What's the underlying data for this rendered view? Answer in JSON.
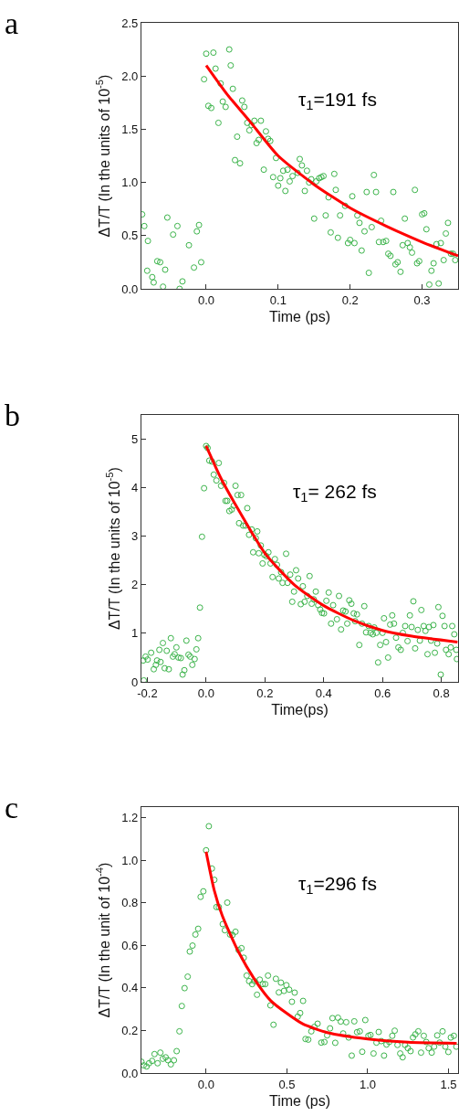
{
  "chart_data": [
    {
      "type": "scatter",
      "title": "a",
      "xlabel": "Time (ps)",
      "ylabel": "ΔT/T (In the units of 10$^{-5}$)",
      "annotations": [
        "τ$_{1}$=191 fs"
      ],
      "xlim": [
        -0.09,
        0.35
      ],
      "ylim": [
        0,
        2.5
      ],
      "xticks": [
        {
          "value": 0,
          "label": "0.0"
        },
        {
          "value": 0.1,
          "label": "0.1"
        },
        {
          "value": 0.2,
          "label": "0.2"
        },
        {
          "value": 0.3,
          "label": "0.3"
        }
      ],
      "yticks": [
        {
          "value": 0,
          "label": "0.0"
        },
        {
          "value": 0.5,
          "label": "0.5"
        },
        {
          "value": 1,
          "label": "1.0"
        },
        {
          "value": 1.5,
          "label": "1.5"
        },
        {
          "value": 2,
          "label": "2.0"
        },
        {
          "value": 2.5,
          "label": "2.5"
        }
      ],
      "series": [
        {
          "marker": "circle",
          "color": "#3cb44b",
          "x": [
            -0.089,
            -0.086,
            -0.081,
            -0.082,
            -0.075,
            -0.073,
            -0.068,
            -0.064,
            -0.06,
            -0.057,
            -0.054,
            -0.046,
            -0.04,
            -0.037,
            -0.033,
            -0.024,
            -0.017,
            -0.013,
            -0.01,
            -0.007,
            -0.003,
            0.0,
            0.003,
            0.007,
            0.01,
            0.013,
            0.017,
            0.02,
            0.023,
            0.027,
            0.032,
            0.034,
            0.037,
            0.04,
            0.043,
            0.047,
            0.05,
            0.053,
            0.057,
            0.06,
            0.063,
            0.067,
            0.07,
            0.073,
            0.076,
            0.08,
            0.083,
            0.086,
            0.089,
            0.093,
            0.097,
            0.1,
            0.103,
            0.107,
            0.11,
            0.113,
            0.116,
            0.12,
            0.127,
            0.13,
            0.133,
            0.137,
            0.14,
            0.143,
            0.146,
            0.15,
            0.153,
            0.157,
            0.16,
            0.163,
            0.166,
            0.17,
            0.173,
            0.178,
            0.18,
            0.183,
            0.186,
            0.193,
            0.197,
            0.2,
            0.203,
            0.206,
            0.21,
            0.213,
            0.216,
            0.22,
            0.223,
            0.226,
            0.23,
            0.233,
            0.236,
            0.24,
            0.243,
            0.246,
            0.25,
            0.253,
            0.256,
            0.26,
            0.263,
            0.266,
            0.27,
            0.273,
            0.276,
            0.28,
            0.283,
            0.286,
            0.29,
            0.293,
            0.296,
            0.3,
            0.303,
            0.306,
            0.31,
            0.313,
            0.316,
            0.32,
            0.323,
            0.326,
            0.33,
            0.333,
            0.336,
            0.34,
            0.343,
            0.346
          ],
          "values": [
            0.7,
            0.59,
            0.45,
            0.17,
            0.11,
            0.06,
            0.26,
            0.25,
            0.02,
            0.18,
            0.67,
            0.51,
            0.59,
            0.0,
            0.07,
            0.41,
            0.2,
            0.54,
            0.6,
            0.25,
            1.97,
            2.21,
            1.72,
            1.7,
            2.22,
            2.07,
            1.56,
            1.93,
            1.76,
            1.71,
            2.25,
            2.1,
            1.88,
            1.21,
            1.43,
            1.18,
            1.77,
            1.71,
            1.56,
            1.49,
            1.54,
            1.58,
            1.37,
            1.4,
            1.58,
            1.12,
            1.48,
            1.41,
            1.39,
            1.05,
            1.23,
            0.97,
            1.04,
            1.11,
            0.92,
            1.12,
            1.01,
            1.06,
            1.09,
            1.22,
            1.16,
            0.92,
            1.11,
            1.0,
            1.03,
            0.66,
            1.01,
            1.04,
            1.05,
            1.06,
            0.69,
            0.86,
            0.53,
            1.08,
            0.93,
            0.48,
            0.69,
            0.78,
            0.43,
            0.46,
            0.87,
            0.43,
            0.69,
            0.62,
            0.36,
            0.54,
            0.91,
            0.15,
            0.58,
            1.07,
            0.91,
            0.44,
            0.64,
            0.44,
            0.45,
            0.33,
            0.31,
            0.91,
            0.23,
            0.25,
            0.16,
            0.41,
            0.66,
            0.43,
            0.39,
            0.34,
            0.93,
            0.24,
            0.26,
            0.7,
            0.71,
            0.56,
            0.04,
            0.17,
            0.24,
            0.42,
            0.05,
            0.43,
            0.27,
            0.52,
            0.62,
            0.33,
            0.33,
            0.27
          ]
        },
        {
          "type": "line",
          "marker": "none",
          "color": "#ff0000",
          "x": [
            0,
            0.03,
            0.06,
            0.1,
            0.15,
            0.2,
            0.25,
            0.3,
            0.35
          ],
          "values": [
            2.1,
            1.82,
            1.58,
            1.25,
            0.98,
            0.76,
            0.59,
            0.44,
            0.31
          ]
        }
      ]
    },
    {
      "type": "scatter",
      "title": "b",
      "xlabel": "Time(ps)",
      "ylabel": "ΔT/T (In the units of 10$^{-5}$)",
      "annotations": [
        "τ$_{1}$= 262 fs"
      ],
      "xlim": [
        -0.22,
        0.857
      ],
      "ylim": [
        0,
        5.5
      ],
      "xticks": [
        {
          "value": -0.2,
          "label": "-0.2"
        },
        {
          "value": 0,
          "label": "0.0"
        },
        {
          "value": 0.2,
          "label": "0.2"
        },
        {
          "value": 0.4,
          "label": "0.4"
        },
        {
          "value": 0.6,
          "label": "0.6"
        },
        {
          "value": 0.8,
          "label": "0.8"
        }
      ],
      "yticks": [
        0,
        1,
        2,
        3,
        4,
        5
      ],
      "series": [
        {
          "marker": "circle",
          "color": "#3cb44b",
          "x": [
            -0.214,
            -0.212,
            -0.206,
            -0.199,
            -0.187,
            -0.178,
            -0.171,
            -0.167,
            -0.159,
            -0.155,
            -0.147,
            -0.141,
            -0.134,
            -0.127,
            -0.12,
            -0.113,
            -0.107,
            -0.101,
            -0.094,
            -0.086,
            -0.08,
            -0.074,
            -0.067,
            -0.06,
            -0.054,
            -0.047,
            -0.039,
            -0.033,
            -0.027,
            -0.021,
            -0.014,
            -0.007,
            0.0,
            0.005,
            0.011,
            0.02,
            0.026,
            0.035,
            0.043,
            0.051,
            0.061,
            0.066,
            0.072,
            0.079,
            0.087,
            0.094,
            0.1,
            0.107,
            0.112,
            0.119,
            0.126,
            0.134,
            0.14,
            0.146,
            0.155,
            0.16,
            0.169,
            0.174,
            0.179,
            0.186,
            0.192,
            0.198,
            0.205,
            0.212,
            0.219,
            0.226,
            0.234,
            0.241,
            0.247,
            0.255,
            0.26,
            0.272,
            0.277,
            0.286,
            0.293,
            0.299,
            0.306,
            0.313,
            0.322,
            0.329,
            0.335,
            0.344,
            0.352,
            0.359,
            0.366,
            0.373,
            0.381,
            0.388,
            0.394,
            0.401,
            0.409,
            0.417,
            0.425,
            0.432,
            0.445,
            0.452,
            0.459,
            0.466,
            0.474,
            0.48,
            0.487,
            0.494,
            0.502,
            0.507,
            0.513,
            0.521,
            0.53,
            0.538,
            0.544,
            0.553,
            0.559,
            0.567,
            0.572,
            0.579,
            0.585,
            0.592,
            0.6,
            0.605,
            0.612,
            0.619,
            0.626,
            0.633,
            0.639,
            0.646,
            0.654,
            0.662,
            0.669,
            0.677,
            0.685,
            0.693,
            0.699,
            0.705,
            0.711,
            0.72,
            0.727,
            0.732,
            0.74,
            0.746,
            0.753,
            0.758,
            0.765,
            0.773,
            0.778,
            0.786,
            0.79,
            0.798,
            0.804,
            0.811,
            0.816,
            0.825,
            0.832,
            0.837,
            0.844,
            0.851,
            0.853
          ],
          "values": [
            0.44,
            0.03,
            0.52,
            0.46,
            0.6,
            0.26,
            0.35,
            0.44,
            0.66,
            0.41,
            0.8,
            0.28,
            0.64,
            0.26,
            0.9,
            0.52,
            0.57,
            0.71,
            0.5,
            0.49,
            0.15,
            0.24,
            0.85,
            0.56,
            0.52,
            0.35,
            0.47,
            0.67,
            0.9,
            1.53,
            2.99,
            3.99,
            4.86,
            4.82,
            4.56,
            4.54,
            4.27,
            4.15,
            4.51,
            4.04,
            4.1,
            3.73,
            3.73,
            3.52,
            3.55,
            3.63,
            4.04,
            3.85,
            3.27,
            3.85,
            3.22,
            3.22,
            3.58,
            3.03,
            3.14,
            2.67,
            2.96,
            3.1,
            2.65,
            2.81,
            2.44,
            2.62,
            2.59,
            2.67,
            2.44,
            2.16,
            2.53,
            2.41,
            2.13,
            2.26,
            2.04,
            2.64,
            2.04,
            2.21,
            1.65,
            1.86,
            2.3,
            2.13,
            1.6,
            1.97,
            1.65,
            1.77,
            2.18,
            1.61,
            1.7,
            1.86,
            1.58,
            1.49,
            1.42,
            1.41,
            1.67,
            1.84,
            1.2,
            1.58,
            1.29,
            1.77,
            1.08,
            1.47,
            1.45,
            1.2,
            1.68,
            1.61,
            1.41,
            1.25,
            1.39,
            0.76,
            1.2,
            1.56,
            1.02,
            1.15,
            1.01,
            0.98,
            1.12,
            1.01,
            0.4,
            0.76,
            1.01,
            1.31,
            0.82,
            0.5,
            1.18,
            1.37,
            1.2,
            0.91,
            0.71,
            0.66,
            1.01,
            1.15,
            0.84,
            1.37,
            1.13,
            1.66,
            0.69,
            1.07,
            0.85,
            1.48,
            1.15,
            1.05,
            0.57,
            1.13,
            0.85,
            1.17,
            0.6,
            0.79,
            1.54,
            0.15,
            1.36,
            1.15,
            0.66,
            0.57,
            0.71,
            1.15,
            0.98,
            0.66,
            0.47
          ]
        },
        {
          "type": "line",
          "marker": "none",
          "color": "#ff0000",
          "x": [
            0,
            0.05,
            0.1,
            0.2,
            0.3,
            0.4,
            0.5,
            0.6,
            0.7,
            0.855
          ],
          "values": [
            4.86,
            4.2,
            3.65,
            2.65,
            2.0,
            1.57,
            1.27,
            1.06,
            0.94,
            0.82
          ]
        }
      ]
    },
    {
      "type": "scatter",
      "title": "c",
      "xlabel": "Time (ps)",
      "ylabel": "ΔT/T (In the unit of 10$^{-4}$)",
      "annotations": [
        "τ$_{1}$=296 fs"
      ],
      "xlim": [
        -0.4,
        1.559
      ],
      "ylim": [
        0,
        1.25
      ],
      "xticks": [
        {
          "value": 0,
          "label": "0.0"
        },
        {
          "value": 0.5,
          "label": "0.5"
        },
        {
          "value": 1,
          "label": "1.0"
        },
        {
          "value": 1.5,
          "label": "1.5"
        }
      ],
      "yticks": [
        {
          "value": 0,
          "label": "0.0"
        },
        {
          "value": 0.2,
          "label": "0.2"
        },
        {
          "value": 0.4,
          "label": "0.4"
        },
        {
          "value": 0.6,
          "label": "0.6"
        },
        {
          "value": 0.8,
          "label": "0.8"
        },
        {
          "value": 1,
          "label": "1.0"
        },
        {
          "value": 1.2,
          "label": "1.2"
        }
      ],
      "series": [
        {
          "marker": "circle",
          "color": "#3cb44b",
          "x": [
            -0.4,
            -0.386,
            -0.368,
            -0.353,
            -0.334,
            -0.319,
            -0.3,
            -0.283,
            -0.268,
            -0.25,
            -0.235,
            -0.218,
            -0.199,
            -0.182,
            -0.165,
            -0.15,
            -0.133,
            -0.114,
            -0.101,
            -0.084,
            -0.066,
            -0.049,
            -0.034,
            -0.017,
            0.0,
            0.017,
            0.036,
            0.051,
            0.064,
            0.079,
            0.103,
            0.116,
            0.131,
            0.148,
            0.163,
            0.182,
            0.201,
            0.219,
            0.233,
            0.251,
            0.266,
            0.285,
            0.3,
            0.315,
            0.332,
            0.351,
            0.366,
            0.383,
            0.398,
            0.417,
            0.432,
            0.45,
            0.463,
            0.482,
            0.497,
            0.514,
            0.531,
            0.548,
            0.567,
            0.582,
            0.6,
            0.615,
            0.632,
            0.651,
            0.67,
            0.69,
            0.713,
            0.732,
            0.749,
            0.767,
            0.782,
            0.799,
            0.816,
            0.833,
            0.848,
            0.867,
            0.882,
            0.901,
            0.917,
            0.934,
            0.951,
            0.966,
            0.985,
            1.004,
            1.017,
            1.036,
            1.054,
            1.068,
            1.084,
            1.101,
            1.116,
            1.133,
            1.152,
            1.167,
            1.184,
            1.201,
            1.216,
            1.231,
            1.248,
            1.265,
            1.28,
            1.295,
            1.313,
            1.33,
            1.347,
            1.362,
            1.377,
            1.396,
            1.411,
            1.43,
            1.445,
            1.463,
            1.48,
            1.499,
            1.514,
            1.533,
            1.548
          ],
          "values": [
            0.053,
            0.036,
            0.031,
            0.046,
            0.057,
            0.089,
            0.046,
            0.096,
            0.067,
            0.074,
            0.06,
            0.041,
            0.06,
            0.103,
            0.196,
            0.315,
            0.399,
            0.453,
            0.571,
            0.599,
            0.651,
            0.678,
            0.828,
            0.854,
            1.047,
            1.16,
            0.961,
            0.908,
            0.78,
            0.78,
            0.7,
            0.671,
            0.801,
            0.651,
            0.649,
            0.664,
            0.578,
            0.587,
            0.542,
            0.458,
            0.432,
            0.418,
            0.432,
            0.368,
            0.439,
            0.418,
            0.418,
            0.458,
            0.318,
            0.227,
            0.443,
            0.379,
            0.425,
            0.386,
            0.413,
            0.392,
            0.335,
            0.378,
            0.265,
            0.282,
            0.339,
            0.16,
            0.157,
            0.196,
            0.217,
            0.232,
            0.143,
            0.146,
            0.177,
            0.21,
            0.258,
            0.142,
            0.26,
            0.242,
            0.186,
            0.239,
            0.167,
            0.082,
            0.243,
            0.192,
            0.196,
            0.1,
            0.249,
            0.175,
            0.179,
            0.092,
            0.143,
            0.193,
            0.15,
            0.082,
            0.134,
            0.146,
            0.175,
            0.199,
            0.132,
            0.092,
            0.074,
            0.132,
            0.117,
            0.103,
            0.167,
            0.182,
            0.196,
            0.096,
            0.175,
            0.146,
            0.117,
            0.096,
            0.124,
            0.177,
            0.143,
            0.196,
            0.124,
            0.099,
            0.167,
            0.175,
            0.124
          ]
        },
        {
          "type": "line",
          "marker": "none",
          "color": "#ff0000",
          "x": [
            0,
            0.05,
            0.1,
            0.2,
            0.3,
            0.4,
            0.5,
            0.6,
            0.75,
            1.0,
            1.25,
            1.55
          ],
          "values": [
            1.04,
            0.86,
            0.74,
            0.57,
            0.44,
            0.34,
            0.28,
            0.23,
            0.19,
            0.16,
            0.145,
            0.14
          ]
        }
      ]
    }
  ]
}
